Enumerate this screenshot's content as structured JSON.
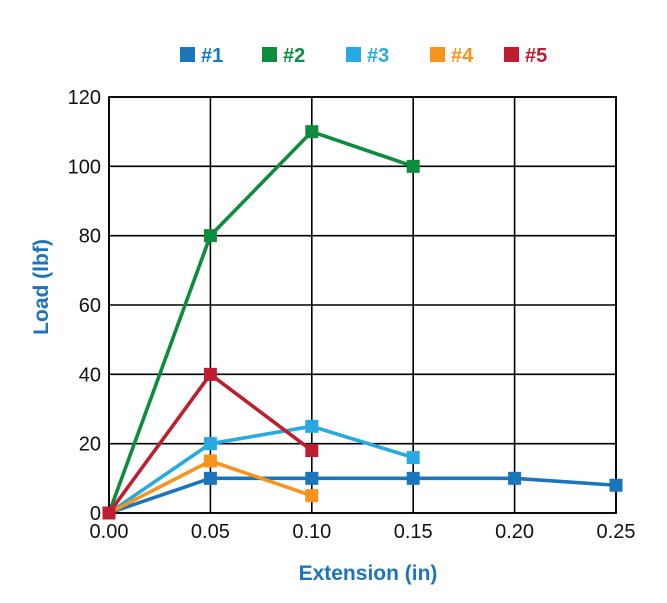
{
  "chart_data": {
    "type": "line",
    "title": "",
    "xlabel": "Extension (in)",
    "ylabel": "Load (lbf)",
    "axis_title_color": "#1C75BC",
    "xlim": [
      0.0,
      0.25
    ],
    "ylim": [
      0,
      120
    ],
    "x_ticks": [
      "0.00",
      "0.05",
      "0.10",
      "0.15",
      "0.20",
      "0.25"
    ],
    "y_ticks": [
      "0",
      "20",
      "40",
      "60",
      "80",
      "100",
      "120"
    ],
    "grid": true,
    "legend_position": "top",
    "series": [
      {
        "name": "#1",
        "color": "#1B75BB",
        "points": [
          [
            0.0,
            0
          ],
          [
            0.05,
            10
          ],
          [
            0.1,
            10
          ],
          [
            0.15,
            10
          ],
          [
            0.2,
            10
          ],
          [
            0.25,
            8
          ]
        ]
      },
      {
        "name": "#2",
        "color": "#0E8C3E",
        "points": [
          [
            0.0,
            0
          ],
          [
            0.05,
            80
          ],
          [
            0.1,
            110
          ],
          [
            0.15,
            100
          ]
        ]
      },
      {
        "name": "#3",
        "color": "#27AAE1",
        "points": [
          [
            0.0,
            0
          ],
          [
            0.05,
            20
          ],
          [
            0.1,
            25
          ],
          [
            0.15,
            16
          ]
        ]
      },
      {
        "name": "#4",
        "color": "#F7941D",
        "points": [
          [
            0.0,
            0
          ],
          [
            0.05,
            15
          ],
          [
            0.1,
            5
          ]
        ]
      },
      {
        "name": "#5",
        "color": "#BE1E2D",
        "points": [
          [
            0.0,
            0
          ],
          [
            0.05,
            40
          ],
          [
            0.1,
            18
          ]
        ]
      }
    ]
  }
}
